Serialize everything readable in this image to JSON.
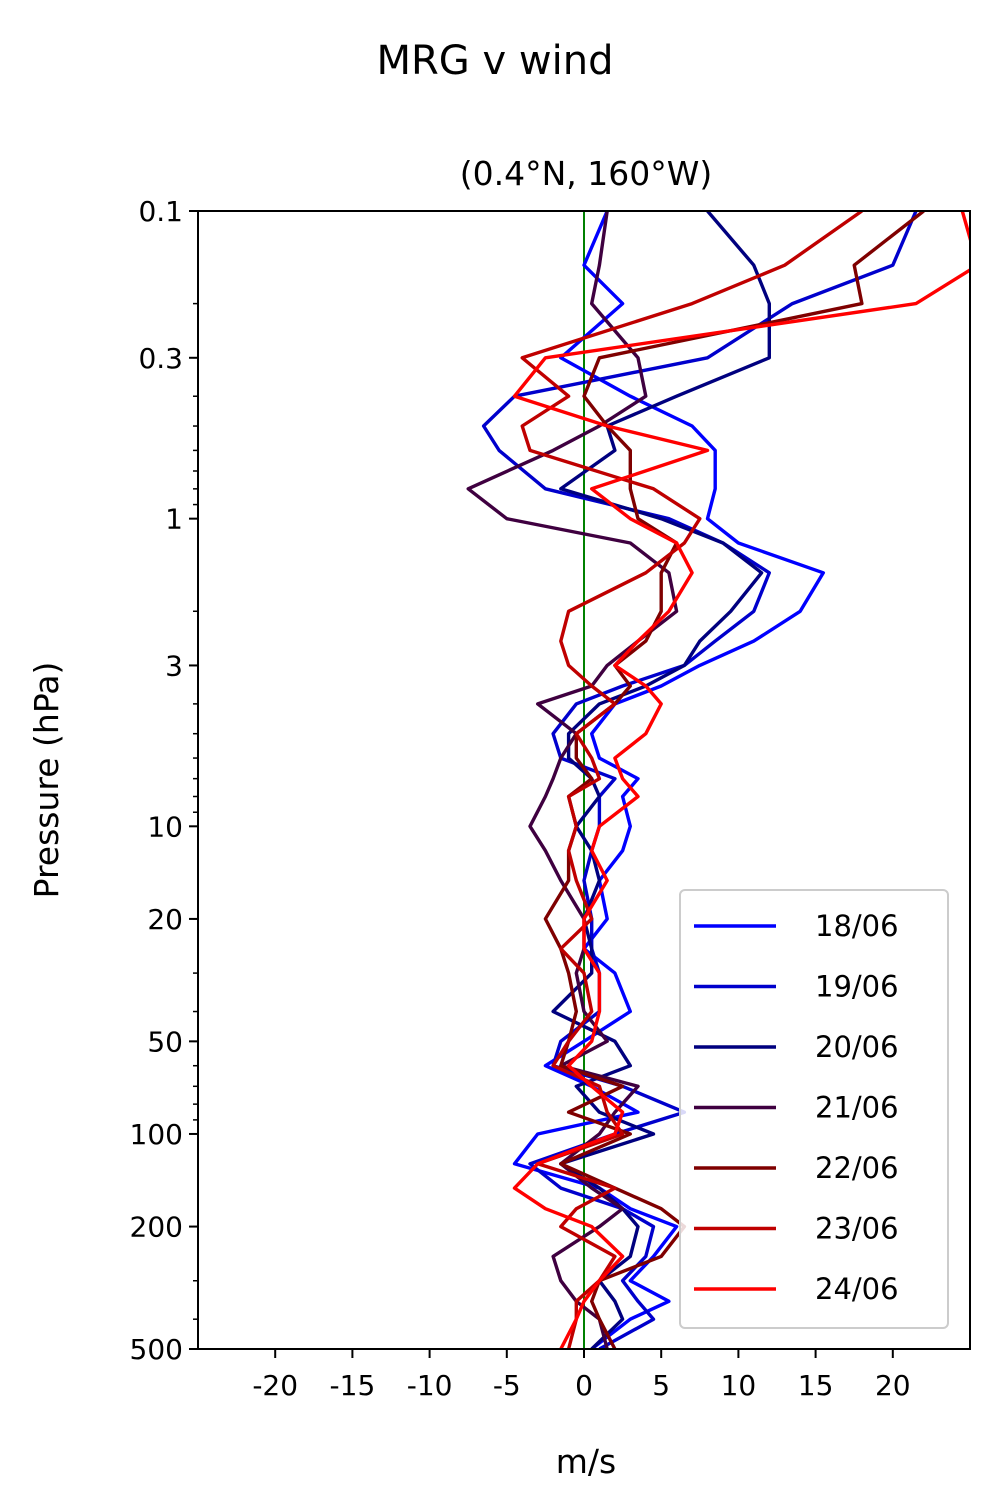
{
  "chart_data": {
    "type": "line",
    "title": "MRG v wind",
    "subtitle": "(0.4°N, 160°W)",
    "xlabel": "m/s",
    "ylabel": "Pressure (hPa)",
    "xlim": [
      -25,
      25
    ],
    "ylim": [
      500,
      0.1
    ],
    "yscale": "log",
    "inverted_y": true,
    "x_ticks": [
      -20,
      -15,
      -10,
      -5,
      0,
      5,
      10,
      15,
      20
    ],
    "x_tick_labels": [
      "-20",
      "-15",
      "-10",
      "-5",
      "0",
      "5",
      "10",
      "15",
      "20"
    ],
    "y_ticks": [
      0.1,
      0.3,
      1,
      3,
      10,
      20,
      50,
      100,
      200,
      500
    ],
    "y_tick_labels": [
      "0.1",
      "0.3",
      "1",
      "3",
      "10",
      "20",
      "50",
      "100",
      "200",
      "500"
    ],
    "grid": false,
    "legend_position": "bottom-right",
    "reference_line": {
      "x": 0,
      "color": "#008000"
    },
    "pressure": [
      500,
      400,
      350,
      300,
      250,
      200,
      175,
      150,
      125,
      100,
      85,
      70,
      60,
      50,
      40,
      30,
      25,
      20,
      15,
      12,
      10,
      8,
      7,
      6,
      5,
      4,
      3.5,
      3,
      2.5,
      2,
      1.5,
      1.2,
      1,
      0.8,
      0.6,
      0.5,
      0.4,
      0.3,
      0.2,
      0.15,
      0.1
    ],
    "series": [
      {
        "name": "18/06",
        "color": "#0000ff",
        "values": [
          0.5,
          3.0,
          5.5,
          3.0,
          4.5,
          6.0,
          3.0,
          1.0,
          -4.5,
          -3.0,
          3.5,
          0.5,
          -2.5,
          0.0,
          3.0,
          2.0,
          0.0,
          1.5,
          1.0,
          2.5,
          3.0,
          2.5,
          3.5,
          1.0,
          0.5,
          2.0,
          5.0,
          7.5,
          11.0,
          14.0,
          15.5,
          10.0,
          8.0,
          8.5,
          8.5,
          7.0,
          3.0,
          -1.5,
          2.5,
          0.0,
          1.5
        ]
      },
      {
        "name": "19/06",
        "color": "#0000cc",
        "values": [
          1.0,
          4.5,
          3.5,
          2.5,
          4.0,
          4.5,
          2.5,
          -1.5,
          -3.5,
          2.0,
          6.5,
          2.5,
          -2.0,
          -1.5,
          1.0,
          1.0,
          0.5,
          0.5,
          0.0,
          0.5,
          1.0,
          1.0,
          2.0,
          -1.5,
          -2.0,
          -0.5,
          2.5,
          6.5,
          8.5,
          11.0,
          12.0,
          9.0,
          5.5,
          -2.5,
          -5.5,
          -6.5,
          -4.5,
          8.0,
          13.5,
          20.0,
          21.5
        ]
      },
      {
        "name": "20/06",
        "color": "#00007f",
        "values": [
          0.5,
          2.5,
          2.0,
          1.0,
          3.0,
          3.5,
          2.5,
          1.0,
          -1.5,
          4.5,
          1.0,
          -0.5,
          3.0,
          2.0,
          -2.0,
          0.5,
          0.5,
          0.0,
          1.0,
          0.5,
          -0.5,
          1.0,
          0.5,
          -1.0,
          -1.0,
          1.0,
          4.0,
          6.5,
          7.5,
          9.5,
          11.5,
          9.0,
          5.0,
          -1.5,
          2.0,
          1.5,
          6.0,
          12.0,
          12.0,
          11.0,
          8.0
        ]
      },
      {
        "name": "21/06",
        "color": "#3f0040",
        "values": [
          1.5,
          1.0,
          -0.5,
          -1.5,
          -2.0,
          1.0,
          2.5,
          0.5,
          -1.5,
          1.0,
          2.0,
          3.5,
          -1.5,
          1.5,
          0.0,
          -0.5,
          0.0,
          0.0,
          -1.5,
          -2.5,
          -3.5,
          -2.5,
          -2.0,
          -1.5,
          -0.5,
          -3.0,
          0.5,
          1.5,
          3.5,
          6.0,
          5.5,
          3.0,
          -5.0,
          -7.5,
          -2.0,
          1.0,
          4.0,
          3.5,
          0.5,
          1.0,
          1.5
        ]
      },
      {
        "name": "22/06",
        "color": "#7f0000",
        "values": [
          2.0,
          1.0,
          0.5,
          1.0,
          5.0,
          6.5,
          5.0,
          2.0,
          -1.5,
          3.0,
          -1.0,
          2.5,
          -1.5,
          -1.0,
          -0.5,
          -1.0,
          -1.5,
          -2.5,
          -1.0,
          -1.0,
          -0.5,
          -1.0,
          0.5,
          -0.5,
          -0.5,
          2.0,
          3.0,
          2.0,
          4.0,
          5.0,
          5.0,
          6.0,
          3.5,
          3.0,
          3.0,
          1.5,
          0.0,
          1.0,
          18.0,
          17.5,
          22.0
        ]
      },
      {
        "name": "23/06",
        "color": "#bf0000",
        "values": [
          -1.0,
          -0.5,
          -0.5,
          1.0,
          2.0,
          -1.5,
          -0.5,
          2.0,
          -3.0,
          2.5,
          1.5,
          1.0,
          -2.0,
          -1.0,
          0.5,
          0.0,
          -1.5,
          0.5,
          -0.5,
          -1.0,
          -0.5,
          -1.0,
          1.0,
          0.5,
          -0.5,
          2.0,
          0.5,
          -1.0,
          -1.5,
          -1.0,
          4.0,
          6.5,
          7.5,
          4.5,
          -3.5,
          -4.0,
          -1.0,
          -4.0,
          7.0,
          13.0,
          18.0
        ]
      },
      {
        "name": "24/06",
        "color": "#ff0000",
        "values": [
          -1.5,
          -0.5,
          0.0,
          1.0,
          2.5,
          0.5,
          -2.5,
          -4.5,
          -3.0,
          2.0,
          2.5,
          0.5,
          -1.0,
          0.5,
          1.0,
          1.0,
          0.0,
          0.0,
          1.5,
          0.5,
          1.0,
          3.5,
          2.5,
          2.0,
          4.0,
          5.0,
          4.0,
          2.0,
          3.5,
          5.5,
          7.0,
          6.0,
          3.0,
          0.5,
          8.0,
          1.5,
          -4.5,
          -2.5,
          21.5,
          25.5,
          24.5
        ]
      }
    ]
  }
}
